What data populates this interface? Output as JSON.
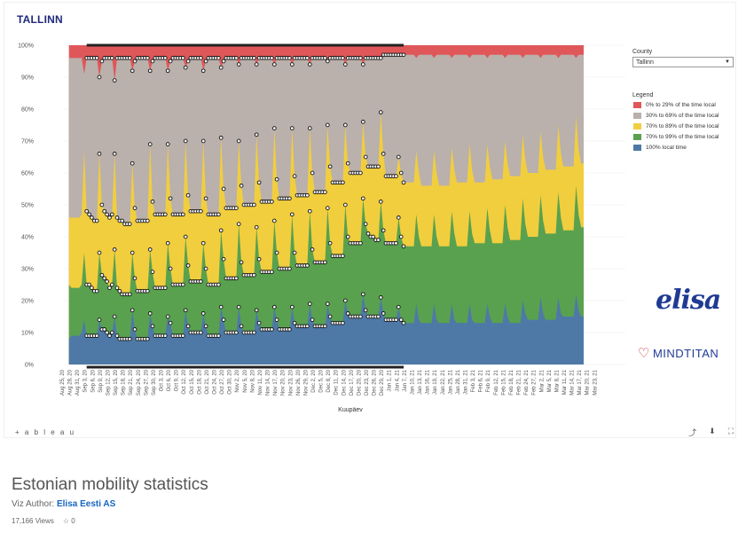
{
  "header": {
    "title": "TALLINN"
  },
  "filter": {
    "label": "County",
    "value": "Tallinn"
  },
  "legend": {
    "title": "Legend",
    "items": [
      {
        "label": "0% to 29% of the time local",
        "color": "#e05759"
      },
      {
        "label": "30% to 69% of the time local",
        "color": "#bab0ac"
      },
      {
        "label": "70% to 89% of the time local",
        "color": "#f1ce3e"
      },
      {
        "label": "70% to 99% of the time local",
        "color": "#59a14f"
      },
      {
        "label": "100% local time",
        "color": "#4e79a7"
      }
    ]
  },
  "logos": {
    "elisa": "elisa",
    "mindtitan": "MINDTITAN"
  },
  "toolbar": {
    "brand": "+ a b l e a u",
    "icons": [
      "share-icon",
      "download-icon",
      "fullscreen-icon"
    ]
  },
  "page": {
    "heading": "Estonian mobility statistics",
    "author_prefix": "Viz Author:",
    "author": "Elisa Eesti AS",
    "views": "17,166 Views",
    "favorites": "0"
  },
  "chart_data": {
    "type": "area",
    "xlabel": "Kuupäev",
    "ylim": [
      0,
      100
    ],
    "y_ticks": [
      "0%",
      "10%",
      "20%",
      "30%",
      "40%",
      "50%",
      "60%",
      "70%",
      "80%",
      "90%",
      "100%"
    ],
    "x_start": "2020-08-25",
    "x_end": "2021-03-25",
    "x_ticks": [
      "Aug 25, 20",
      "Aug 28, 20",
      "Aug 31, 20",
      "Sep 3, 20",
      "Sep 6, 20",
      "Sep 9, 20",
      "Sep 12, 20",
      "Sep 15, 20",
      "Sep 18, 20",
      "Sep 21, 20",
      "Sep 24, 20",
      "Sep 27, 20",
      "Sep 30, 20",
      "Oct 3, 20",
      "Oct 6, 20",
      "Oct 9, 20",
      "Oct 12, 20",
      "Oct 15, 20",
      "Oct 18, 20",
      "Oct 21, 20",
      "Oct 24, 20",
      "Oct 27, 20",
      "Oct 30, 20",
      "Nov 2, 20",
      "Nov 5, 20",
      "Nov 8, 20",
      "Nov 11, 20",
      "Nov 14, 20",
      "Nov 17, 20",
      "Nov 20, 20",
      "Nov 23, 20",
      "Nov 26, 20",
      "Nov 29, 20",
      "Dec 2, 20",
      "Dec 5, 20",
      "Dec 8, 20",
      "Dec 11, 20",
      "Dec 14, 20",
      "Dec 17, 20",
      "Dec 20, 20",
      "Dec 23, 20",
      "Dec 26, 20",
      "Dec 29, 20",
      "Jan 1, 21",
      "Jan 4, 21",
      "Jan 7, 21",
      "Jan 10, 21",
      "Jan 13, 21",
      "Jan 16, 21",
      "Jan 19, 21",
      "Jan 22, 21",
      "Jan 25, 21",
      "Jan 28, 21",
      "Jan 31, 21",
      "Feb 3, 21",
      "Feb 6, 21",
      "Feb 9, 21",
      "Feb 12, 21",
      "Feb 15, 21",
      "Feb 18, 21",
      "Feb 21, 21",
      "Feb 24, 21",
      "Feb 27, 21",
      "Mar 2, 21",
      "Mar 5, 21",
      "Mar 8, 21",
      "Mar 11, 21",
      "Mar 14, 21",
      "Mar 17, 21",
      "Mar 20, 21",
      "Mar 23, 21"
    ],
    "highlight_range": [
      "2020-09-03",
      "2021-01-06"
    ],
    "series": [
      {
        "name": "100% local time",
        "color": "#4e79a7",
        "start": "2020-08-27",
        "values": [
          8,
          9,
          9,
          9,
          9,
          10,
          14,
          9,
          9,
          9,
          9,
          9,
          14,
          11,
          11,
          10,
          9,
          10,
          15,
          9,
          8,
          8,
          8,
          8,
          8,
          17,
          11,
          8,
          8,
          8,
          8,
          8,
          16,
          12,
          9,
          9,
          9,
          9,
          9,
          15,
          13,
          9,
          9,
          9,
          9,
          9,
          17,
          12,
          10,
          10,
          10,
          10,
          10,
          16,
          12,
          9,
          9,
          9,
          9,
          9,
          18,
          14,
          10,
          10,
          10,
          10,
          10,
          18,
          12,
          10,
          10,
          10,
          10,
          10,
          17,
          13,
          11,
          11,
          11,
          11,
          11,
          18,
          14,
          11,
          11,
          11,
          11,
          11,
          18,
          13,
          12,
          12,
          12,
          12,
          12,
          19,
          14,
          12,
          12,
          12,
          12,
          12,
          19,
          15,
          13,
          13,
          13,
          13,
          13,
          20,
          16,
          15,
          15,
          15,
          15,
          15,
          22,
          17,
          15,
          15,
          15,
          15,
          15,
          21,
          16,
          14,
          14,
          14,
          14,
          14,
          18,
          14,
          13,
          13,
          13,
          13,
          13,
          19,
          14,
          13,
          13,
          13,
          13,
          13,
          19,
          14,
          13,
          13,
          13,
          13,
          13,
          19,
          14,
          13,
          13,
          13,
          13,
          13,
          19,
          14,
          13,
          13,
          13,
          13,
          13,
          19,
          15,
          13,
          13,
          13,
          13,
          13,
          19,
          15,
          13,
          13,
          13,
          13,
          13,
          20,
          16,
          14,
          14,
          14,
          14,
          14,
          21,
          16,
          14,
          14,
          14,
          14,
          14,
          21,
          16,
          15,
          15,
          15,
          15,
          15,
          22,
          17,
          15,
          15
        ]
      },
      {
        "name": "70% to 99% of the time local",
        "color": "#59a14f",
        "start": "2020-08-27",
        "values": [
          25,
          24,
          24,
          24,
          24,
          25,
          35,
          25,
          25,
          24,
          23,
          23,
          35,
          28,
          27,
          26,
          24,
          25,
          36,
          24,
          23,
          22,
          22,
          22,
          22,
          35,
          27,
          23,
          23,
          23,
          23,
          23,
          36,
          29,
          24,
          24,
          24,
          24,
          24,
          38,
          30,
          25,
          25,
          25,
          25,
          25,
          40,
          31,
          26,
          26,
          26,
          26,
          26,
          38,
          30,
          25,
          25,
          25,
          25,
          25,
          42,
          33,
          27,
          27,
          27,
          27,
          27,
          44,
          32,
          28,
          28,
          28,
          28,
          28,
          43,
          33,
          29,
          29,
          29,
          29,
          29,
          45,
          35,
          30,
          30,
          30,
          30,
          30,
          47,
          35,
          31,
          31,
          31,
          31,
          31,
          48,
          36,
          32,
          32,
          32,
          32,
          32,
          49,
          38,
          34,
          34,
          34,
          34,
          34,
          50,
          40,
          38,
          38,
          38,
          38,
          38,
          52,
          44,
          41,
          40,
          40,
          39,
          39,
          51,
          42,
          38,
          38,
          38,
          38,
          38,
          46,
          40,
          37,
          37,
          37,
          37,
          37,
          47,
          40,
          37,
          37,
          37,
          37,
          37,
          47,
          40,
          37,
          37,
          37,
          37,
          37,
          48,
          41,
          37,
          37,
          37,
          37,
          37,
          48,
          41,
          38,
          38,
          38,
          38,
          38,
          49,
          42,
          38,
          38,
          38,
          38,
          38,
          50,
          43,
          39,
          39,
          39,
          39,
          39,
          52,
          44,
          40,
          40,
          40,
          40,
          40,
          53,
          45,
          41,
          41,
          41,
          41,
          41,
          54,
          46,
          42,
          42,
          42,
          42,
          42,
          56,
          47,
          43,
          43
        ]
      },
      {
        "name": "70% to 89% of the time local",
        "color": "#f1ce3e",
        "start": "2020-08-27",
        "values": [
          46,
          46,
          46,
          46,
          46,
          47,
          67,
          48,
          47,
          46,
          45,
          45,
          66,
          50,
          48,
          47,
          46,
          47,
          66,
          46,
          45,
          45,
          44,
          44,
          44,
          63,
          49,
          45,
          45,
          45,
          45,
          45,
          69,
          51,
          47,
          47,
          47,
          47,
          47,
          69,
          52,
          47,
          47,
          47,
          47,
          47,
          70,
          53,
          48,
          48,
          48,
          48,
          48,
          70,
          52,
          47,
          47,
          47,
          47,
          47,
          71,
          55,
          49,
          49,
          49,
          49,
          49,
          70,
          56,
          50,
          50,
          50,
          50,
          50,
          72,
          57,
          51,
          51,
          51,
          51,
          51,
          74,
          58,
          52,
          52,
          52,
          52,
          52,
          74,
          59,
          53,
          53,
          53,
          53,
          53,
          74,
          60,
          54,
          54,
          54,
          54,
          54,
          75,
          62,
          57,
          57,
          57,
          57,
          57,
          75,
          63,
          60,
          60,
          60,
          60,
          60,
          76,
          65,
          62,
          62,
          62,
          62,
          62,
          79,
          66,
          59,
          59,
          59,
          59,
          59,
          65,
          60,
          57,
          57,
          57,
          57,
          57,
          67,
          60,
          56,
          56,
          56,
          56,
          56,
          67,
          60,
          56,
          56,
          56,
          56,
          56,
          68,
          61,
          57,
          57,
          57,
          57,
          57,
          69,
          61,
          57,
          57,
          57,
          57,
          57,
          69,
          62,
          58,
          58,
          58,
          58,
          58,
          70,
          63,
          59,
          59,
          59,
          59,
          59,
          72,
          64,
          60,
          60,
          60,
          60,
          60,
          73,
          65,
          61,
          61,
          61,
          61,
          61,
          75,
          66,
          62,
          62,
          62,
          62,
          62,
          78,
          67,
          63,
          63
        ]
      },
      {
        "name": "30% to 69% of the time local",
        "color": "#bab0ac",
        "start": "2020-08-27",
        "values": [
          96,
          96,
          96,
          96,
          96,
          96,
          91,
          96,
          96,
          96,
          96,
          96,
          90,
          95,
          96,
          96,
          96,
          96,
          89,
          96,
          96,
          96,
          96,
          96,
          96,
          92,
          95,
          96,
          96,
          96,
          96,
          96,
          92,
          95,
          96,
          96,
          96,
          96,
          96,
          92,
          95,
          96,
          96,
          96,
          96,
          96,
          93,
          95,
          96,
          96,
          96,
          96,
          96,
          92,
          95,
          96,
          96,
          96,
          96,
          96,
          93,
          95,
          96,
          96,
          96,
          96,
          96,
          94,
          96,
          96,
          96,
          96,
          96,
          96,
          94,
          96,
          96,
          96,
          96,
          96,
          96,
          94,
          96,
          96,
          96,
          96,
          96,
          96,
          94,
          96,
          96,
          96,
          96,
          96,
          96,
          94,
          96,
          96,
          96,
          96,
          96,
          96,
          95,
          96,
          96,
          96,
          96,
          96,
          96,
          94,
          96,
          96,
          96,
          96,
          96,
          96,
          94,
          96,
          96,
          96,
          96,
          96,
          96,
          96,
          97,
          97,
          97,
          97,
          97,
          97,
          97,
          97,
          97,
          97,
          97,
          97,
          97,
          96,
          97,
          97,
          97,
          97,
          97,
          97,
          96,
          97,
          97,
          97,
          97,
          97,
          97,
          96,
          97,
          97,
          97,
          97,
          97,
          97,
          96,
          97,
          97,
          97,
          97,
          97,
          97,
          96,
          97,
          97,
          97,
          97,
          97,
          97,
          96,
          97,
          97,
          97,
          97,
          97,
          97,
          96,
          97,
          97,
          97,
          97,
          97,
          97,
          96,
          97,
          97,
          97,
          97,
          97,
          97,
          96,
          97,
          97,
          97,
          97,
          97,
          97,
          96,
          97,
          97,
          97
        ]
      },
      {
        "name": "0% to 29% of the time local",
        "color": "#e05759",
        "start": "2020-08-27",
        "values_constant": 100
      }
    ]
  }
}
